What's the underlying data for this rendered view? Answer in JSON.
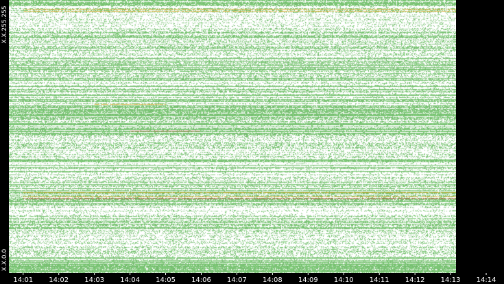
{
  "chart_data": {
    "type": "heatmap",
    "title": "",
    "xlabel": "",
    "ylabel": "",
    "y_range_labels": {
      "top": "X.X.255.255",
      "bottom": "X.X.0.0"
    },
    "x_ticks": [
      "14:01",
      "14:02",
      "14:03",
      "14:04",
      "14:05",
      "14:06",
      "14:07",
      "14:08",
      "14:09",
      "14:10",
      "14:11",
      "14:12",
      "14:13",
      "14:14"
    ],
    "x_range_minutes": [
      0.6,
      14.5
    ],
    "data_end_minute": 13.8,
    "y_range": [
      0,
      255
    ],
    "colors": {
      "background": "#ffffff",
      "frame": "#000000",
      "low": "#7cc576",
      "medium": "#d4a017",
      "high": "#c0392b"
    },
    "hot_rows": [
      {
        "y": 69,
        "from": "14:01",
        "to": "14:14",
        "level": "high"
      },
      {
        "y": 71,
        "from": "14:01",
        "to": "14:14",
        "level": "medium"
      },
      {
        "y": 75,
        "from": "14:01",
        "to": "14:14",
        "level": "medium"
      },
      {
        "y": 133,
        "from": "14:04",
        "to": "14:06",
        "level": "high"
      },
      {
        "y": 158,
        "from": "14:03",
        "to": "14:05",
        "level": "medium"
      },
      {
        "y": 246,
        "from": "14:01",
        "to": "14:14",
        "level": "medium"
      },
      {
        "y": 248,
        "from": "14:01",
        "to": "14:14",
        "level": "medium"
      }
    ]
  }
}
